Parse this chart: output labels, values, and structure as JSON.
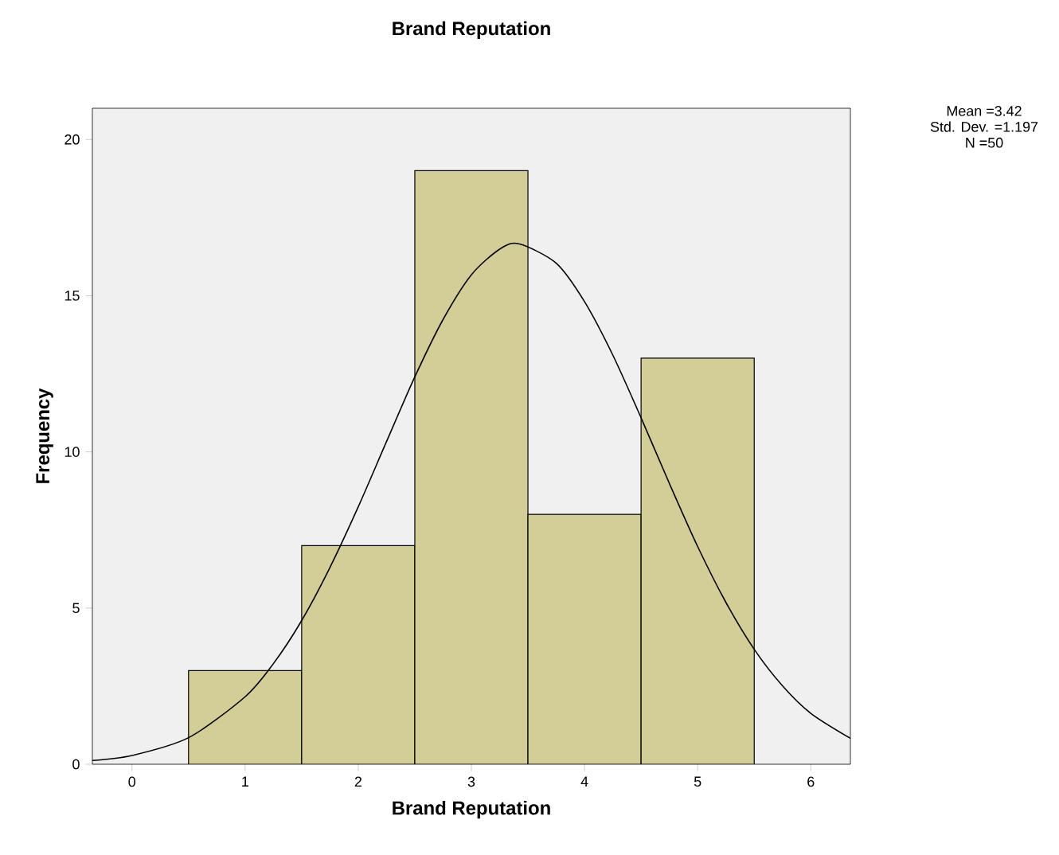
{
  "chart_data": {
    "type": "histogram",
    "title": "Brand Reputation",
    "xlabel": "Brand Reputation",
    "ylabel": "Frequency",
    "bins": [
      0.5,
      1.5,
      2.5,
      3.5,
      4.5,
      5.5
    ],
    "values": [
      3,
      7,
      19,
      8,
      13
    ],
    "color": "#d3ce97",
    "series": [
      {
        "type": "line",
        "color": "#000000",
        "x": [
          -0.35,
          0,
          0.5,
          1,
          1.25,
          1.5,
          1.75,
          2,
          2.25,
          2.5,
          2.75,
          3,
          3.25,
          3.42,
          3.75,
          4,
          4.25,
          4.5,
          4.75,
          5,
          5.25,
          5.5,
          5.75,
          6,
          6.35
        ],
        "values": [
          0.12,
          0.28,
          0.85,
          2.16,
          3.22,
          4.6,
          6.3,
          8.24,
          10.33,
          12.4,
          14.24,
          15.67,
          16.49,
          16.66,
          16.04,
          14.81,
          13.1,
          11.09,
          8.99,
          6.97,
          5.18,
          3.68,
          2.51,
          1.63,
          0.83
        ]
      }
    ],
    "xlim": [
      -0.35,
      6.35
    ],
    "ylim": [
      0,
      21
    ],
    "xticks": [
      0,
      1,
      2,
      3,
      4,
      5,
      6
    ],
    "yticks": [
      0,
      5,
      10,
      15,
      20
    ],
    "annotations": [
      "Mean =3.42",
      "Std. Dev. =1.197",
      "N =50"
    ]
  }
}
